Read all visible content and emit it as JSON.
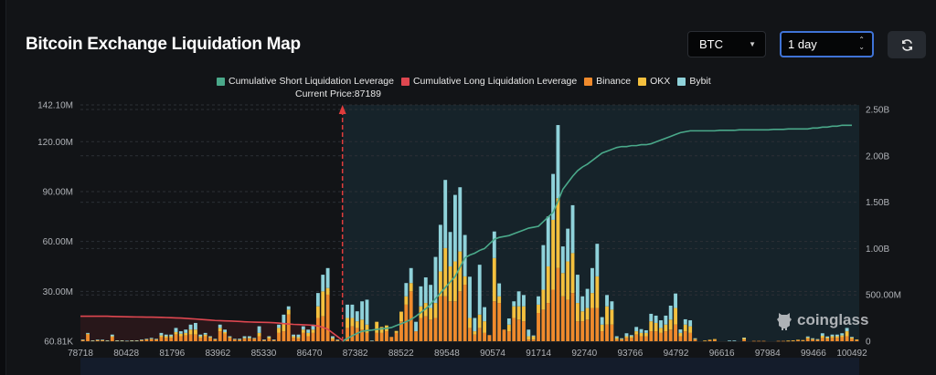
{
  "header": {
    "title": "Bitcoin Exchange Liquidation Map",
    "coin_select": "BTC",
    "range_select": "1 day",
    "refresh_icon": "refresh-icon"
  },
  "watermark": "coinglass",
  "colors": {
    "binance": "#ef8a2c",
    "okx": "#f4c03e",
    "bybit": "#8fd2da",
    "short": "#4aa98a",
    "long": "#de4750",
    "current_price_line": "#e03c3c"
  },
  "chart_data": {
    "type": "bar",
    "stacked": true,
    "current_price_label": "Current Price:87189",
    "legend": [
      "Cumulative Short Liquidation Leverage",
      "Cumulative Long Liquidation Leverage",
      "Binance",
      "OKX",
      "Bybit"
    ],
    "legend_placement": "top-center",
    "grid": true,
    "x_tick_labels": [
      "78718",
      "80428",
      "81796",
      "83962",
      "85330",
      "86470",
      "87382",
      "88522",
      "89548",
      "90574",
      "91714",
      "92740",
      "93766",
      "94792",
      "96616",
      "97984",
      "99466",
      "100492"
    ],
    "y_left": {
      "tick_labels": [
        "60.81K",
        "30.00M",
        "60.00M",
        "90.00M",
        "120.00M",
        "142.10M"
      ],
      "ticks": [
        0,
        30,
        60,
        90,
        120,
        142.1
      ],
      "range": [
        0,
        142.1
      ],
      "unit": "M"
    },
    "y_right": {
      "tick_labels": [
        "0",
        "500.00M",
        "1.00B",
        "1.50B",
        "2.00B",
        "2.50B"
      ],
      "ticks": [
        0,
        0.5,
        1,
        1.5,
        2,
        2.5
      ],
      "range": [
        0,
        2.5
      ],
      "unit": "B"
    },
    "current_price_index": 53,
    "bars": [
      [
        0.7,
        0.1,
        0.2
      ],
      [
        4,
        0.5,
        0.5
      ],
      [
        0.3,
        0.1,
        0.1
      ],
      [
        0.5,
        0.2,
        0.3
      ],
      [
        0.5,
        0.2,
        0.3
      ],
      [
        0.3,
        0.1,
        0.1
      ],
      [
        2.5,
        0.5,
        1
      ],
      [
        0.3,
        0.1,
        0.1
      ],
      [
        0.3,
        0.1,
        0.1
      ],
      [
        0.2,
        0,
        0.1
      ],
      [
        0.3,
        0.1,
        0.1
      ],
      [
        0.3,
        0.1,
        0.1
      ],
      [
        0.6,
        0.2,
        0.2
      ],
      [
        1,
        0.2,
        0.3
      ],
      [
        1.2,
        0.3,
        0.5
      ],
      [
        1,
        0.2,
        0.3
      ],
      [
        2.5,
        1,
        1.5
      ],
      [
        2,
        1,
        1
      ],
      [
        2,
        1,
        1
      ],
      [
        4,
        1.5,
        2.5
      ],
      [
        3,
        1.5,
        1.5
      ],
      [
        3.5,
        1.5,
        2
      ],
      [
        4,
        3,
        3
      ],
      [
        4,
        3,
        4
      ],
      [
        2,
        1,
        1
      ],
      [
        3,
        1,
        1
      ],
      [
        2,
        0.5,
        0.5
      ],
      [
        1,
        0.2,
        0.3
      ],
      [
        6,
        2,
        2
      ],
      [
        4.5,
        1,
        1.5
      ],
      [
        2,
        0.5,
        0.5
      ],
      [
        1,
        0.3,
        0.2
      ],
      [
        0.8,
        0.2,
        0.5
      ],
      [
        1.5,
        0.5,
        1
      ],
      [
        1.5,
        0.5,
        1
      ],
      [
        1.5,
        0.3,
        0.2
      ],
      [
        3,
        2,
        4
      ],
      [
        0.6,
        0.2,
        0.2
      ],
      [
        1.5,
        1,
        0.5
      ],
      [
        0.6,
        0.2,
        0.2
      ],
      [
        5,
        3,
        2
      ],
      [
        6,
        5,
        5
      ],
      [
        16,
        3,
        2
      ],
      [
        2,
        1,
        1
      ],
      [
        1.5,
        1,
        1.5
      ],
      [
        5,
        2,
        2
      ],
      [
        3,
        2,
        2
      ],
      [
        5,
        2,
        3
      ],
      [
        14,
        7,
        8
      ],
      [
        15,
        15,
        10
      ],
      [
        28,
        4,
        12
      ],
      [
        1,
        1,
        1
      ],
      [
        0.5,
        0.2,
        0.3
      ],
      [
        0,
        0,
        0
      ],
      [
        8,
        6,
        8
      ],
      [
        9,
        5,
        8
      ],
      [
        8,
        4,
        6
      ],
      [
        7,
        6,
        11
      ],
      [
        5,
        5,
        15
      ],
      [
        0.3,
        0,
        0.1
      ],
      [
        5,
        6.7,
        0
      ],
      [
        5,
        3.6,
        0
      ],
      [
        6,
        3.5,
        0
      ],
      [
        2.6,
        0,
        0
      ],
      [
        5,
        1.2,
        0
      ],
      [
        12,
        5.8,
        0
      ],
      [
        22,
        5,
        8
      ],
      [
        30,
        5,
        9
      ],
      [
        6,
        0,
        5.7
      ],
      [
        14,
        7,
        12
      ],
      [
        15,
        8,
        15.4
      ],
      [
        13,
        7,
        13.9
      ],
      [
        14,
        9,
        27.7
      ],
      [
        27,
        15,
        28
      ],
      [
        27,
        29,
        41
      ],
      [
        24,
        21,
        20.7
      ],
      [
        24,
        24,
        40
      ],
      [
        30,
        24,
        38.6
      ],
      [
        34,
        5,
        24.9
      ],
      [
        8,
        6,
        24.8
      ],
      [
        4,
        2,
        8
      ],
      [
        8,
        8,
        30
      ],
      [
        5,
        7,
        8.5
      ],
      [
        3.7,
        0,
        0
      ],
      [
        24,
        26,
        16
      ],
      [
        23,
        4,
        7.8
      ],
      [
        7,
        0,
        0
      ],
      [
        6,
        4,
        3.7
      ],
      [
        14,
        7,
        3
      ],
      [
        13,
        8,
        9
      ],
      [
        12,
        9,
        6.8
      ],
      [
        1,
        2,
        4
      ],
      [
        1,
        2,
        0.5
      ],
      [
        17,
        5,
        5
      ],
      [
        19,
        12,
        26.8
      ],
      [
        23,
        22,
        30
      ],
      [
        31,
        42,
        27.6
      ],
      [
        44,
        42,
        44
      ],
      [
        27,
        14,
        16
      ],
      [
        25,
        23,
        19.7
      ],
      [
        29,
        24,
        28.8
      ],
      [
        12,
        11,
        17
      ],
      [
        12,
        6,
        9
      ],
      [
        13,
        7,
        11.5
      ],
      [
        20,
        9,
        15
      ],
      [
        20,
        19,
        19.6
      ],
      [
        6,
        4,
        4.5
      ],
      [
        10,
        11,
        6.8
      ],
      [
        10,
        9,
        5
      ],
      [
        1,
        1,
        1
      ],
      [
        1,
        0.4,
        0.4
      ],
      [
        2,
        1,
        1.8
      ],
      [
        2,
        1,
        0.7
      ],
      [
        4,
        2,
        2.6
      ],
      [
        3,
        2,
        2.3
      ],
      [
        3,
        2,
        1.6
      ],
      [
        6,
        6,
        4.5
      ],
      [
        6,
        5,
        4.4
      ],
      [
        5,
        3,
        4.6
      ],
      [
        6,
        4,
        5.4
      ],
      [
        7,
        6,
        8.4
      ],
      [
        10,
        10,
        8.7
      ],
      [
        3,
        2,
        2.1
      ],
      [
        6,
        4,
        3.2
      ],
      [
        5,
        4,
        3.6
      ],
      [
        1,
        0.4,
        0.4
      ],
      [
        0,
        0,
        0
      ],
      [
        0.3,
        0.1,
        0
      ],
      [
        0.6,
        0.3,
        0
      ],
      [
        0.8,
        0.5,
        0
      ],
      [
        0,
        0,
        0
      ],
      [
        0,
        0,
        0
      ],
      [
        0,
        0,
        0.4
      ],
      [
        0,
        0,
        0.4
      ],
      [
        0,
        0,
        0
      ],
      [
        1,
        1,
        0.2
      ],
      [
        0,
        0,
        0
      ],
      [
        0.2,
        0,
        0
      ],
      [
        0.2,
        0,
        0
      ],
      [
        0.2,
        0,
        0
      ],
      [
        0,
        0,
        0
      ],
      [
        0,
        0,
        0
      ],
      [
        0.2,
        0,
        0
      ],
      [
        0.2,
        0,
        0
      ],
      [
        0.2,
        0.2,
        0
      ],
      [
        0.3,
        0.2,
        0
      ],
      [
        0.6,
        0.3,
        0
      ],
      [
        0.5,
        0.2,
        0
      ],
      [
        1.5,
        0.8,
        0.6
      ],
      [
        1,
        0.4,
        0.4
      ],
      [
        0.8,
        0.3,
        0.2
      ],
      [
        2,
        1.3,
        1.5
      ],
      [
        1.5,
        0.7,
        0.7
      ],
      [
        2,
        1,
        1
      ],
      [
        2,
        1,
        1
      ],
      [
        2.5,
        1,
        1.3
      ],
      [
        3,
        3,
        2
      ],
      [
        1.5,
        0.7,
        0.4
      ],
      [
        0.7,
        0.4,
        0
      ]
    ],
    "cumulative_long": [
      0.27,
      0.27,
      0.27,
      0.27,
      0.27,
      0.27,
      0.268,
      0.266,
      0.265,
      0.264,
      0.263,
      0.262,
      0.261,
      0.26,
      0.26,
      0.259,
      0.258,
      0.256,
      0.254,
      0.252,
      0.25,
      0.247,
      0.243,
      0.24,
      0.236,
      0.232,
      0.228,
      0.224,
      0.222,
      0.22,
      0.218,
      0.216,
      0.213,
      0.21,
      0.208,
      0.206,
      0.205,
      0.204,
      0.202,
      0.2,
      0.196,
      0.19,
      0.186,
      0.182,
      0.18,
      0.178,
      0.176,
      0.172,
      0.165,
      0.15,
      0.13,
      0.09,
      0.05,
      0.01
    ],
    "cumulative_short": [
      null,
      null,
      null,
      null,
      null,
      null,
      null,
      null,
      null,
      null,
      null,
      null,
      null,
      null,
      null,
      null,
      null,
      null,
      null,
      null,
      null,
      null,
      null,
      null,
      null,
      null,
      null,
      null,
      null,
      null,
      null,
      null,
      null,
      null,
      null,
      null,
      null,
      null,
      null,
      null,
      null,
      null,
      null,
      null,
      null,
      null,
      null,
      null,
      null,
      null,
      null,
      null,
      null,
      0,
      0.03,
      0.06,
      0.085,
      0.108,
      0.115,
      0.12,
      0.128,
      0.135,
      0.14,
      0.148,
      0.17,
      0.19,
      0.21,
      0.236,
      0.27,
      0.31,
      0.35,
      0.4,
      0.46,
      0.52,
      0.58,
      0.64,
      0.7,
      0.8,
      0.9,
      0.93,
      0.95,
      0.98,
      1.0,
      1.05,
      1.1,
      1.12,
      1.13,
      1.14,
      1.16,
      1.18,
      1.2,
      1.22,
      1.23,
      1.24,
      1.29,
      1.34,
      1.39,
      1.51,
      1.64,
      1.71,
      1.78,
      1.84,
      1.88,
      1.91,
      1.95,
      1.99,
      2.03,
      2.05,
      2.07,
      2.09,
      2.1,
      2.1,
      2.11,
      2.11,
      2.12,
      2.12,
      2.13,
      2.15,
      2.17,
      2.19,
      2.21,
      2.23,
      2.25,
      2.26,
      2.27,
      2.27,
      2.27,
      2.27,
      2.27,
      2.27,
      2.275,
      2.275,
      2.275,
      2.275,
      2.28,
      2.28,
      2.28,
      2.28,
      2.28,
      2.28,
      2.28,
      2.285,
      2.285,
      2.285,
      2.29,
      2.29,
      2.29,
      2.29,
      2.29,
      2.3,
      2.3,
      2.31,
      2.31,
      2.32,
      2.32,
      2.33,
      2.33,
      2.33
    ]
  }
}
